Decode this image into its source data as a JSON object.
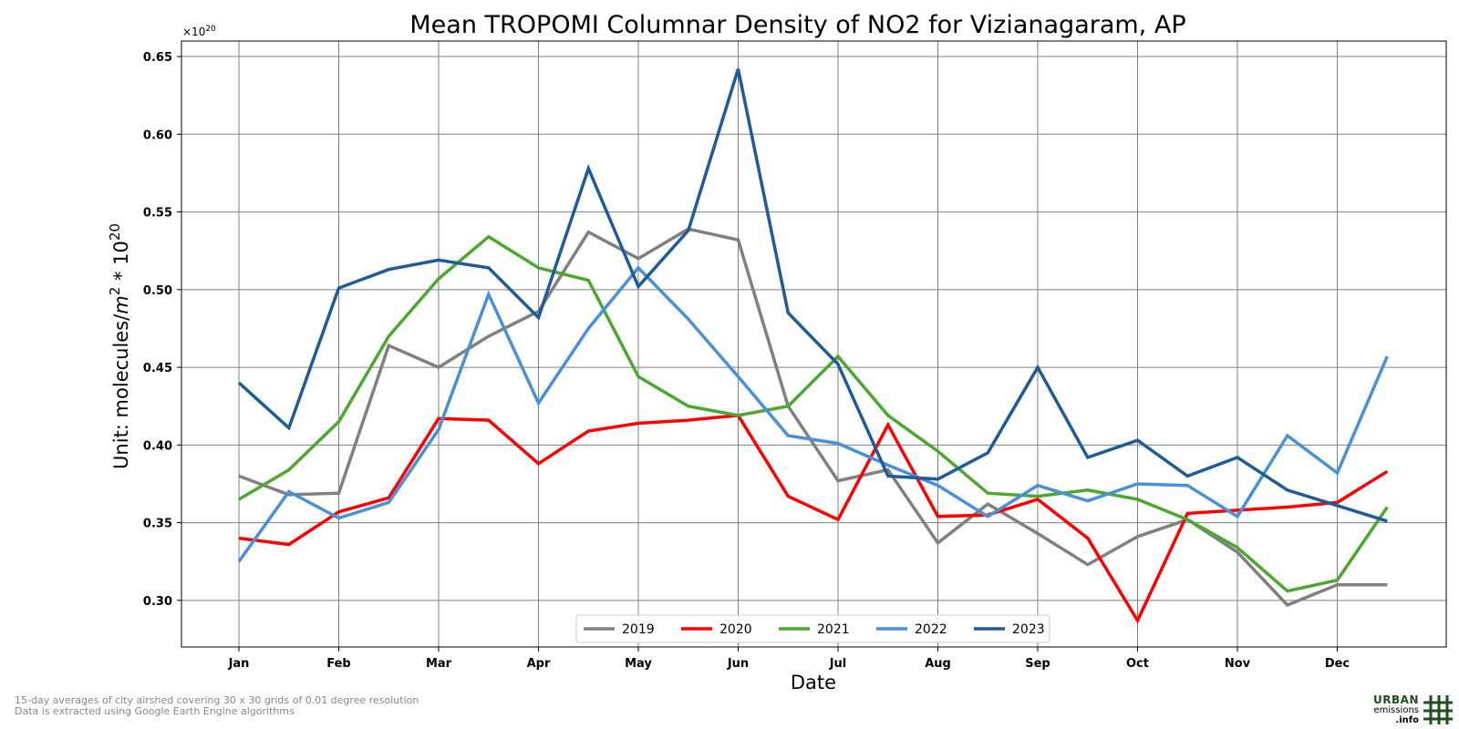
{
  "chart_data": {
    "type": "line",
    "title": "Mean TROPOMI Columnar Density of NO2 for Vizianagaram, AP",
    "xlabel": "Date",
    "ylabel_prefix": "Unit: molecules/",
    "ylabel_m": "m",
    "ylabel_exp": "2",
    "ylabel_mid": " * 10",
    "ylabel_exp2": "20",
    "y_offset_base": "×10",
    "y_offset_exp": "20",
    "ylim": [
      0.27,
      0.66
    ],
    "y_ticks": [
      "0.30",
      "0.35",
      "0.40",
      "0.45",
      "0.50",
      "0.55",
      "0.60",
      "0.65"
    ],
    "x_tick_labels": [
      "Jan",
      "Feb",
      "Mar",
      "Apr",
      "May",
      "Jun",
      "Jul",
      "Aug",
      "Sep",
      "Oct",
      "Nov",
      "Dec"
    ],
    "grid": true,
    "legend_placement": "bottom-center",
    "series": [
      {
        "name": "2019",
        "color": "#808080",
        "values": [
          0.38,
          0.368,
          0.369,
          0.464,
          0.45,
          0.47,
          0.486,
          0.537,
          0.52,
          0.539,
          0.532,
          0.425,
          0.377,
          0.384,
          0.337,
          0.362,
          0.343,
          0.323,
          0.341,
          0.352,
          0.331,
          0.297,
          0.31,
          0.31
        ]
      },
      {
        "name": "2020",
        "color": "#ff0000",
        "values": [
          0.34,
          0.336,
          0.357,
          0.366,
          0.417,
          0.416,
          0.388,
          0.409,
          0.414,
          0.416,
          0.419,
          0.367,
          0.352,
          0.413,
          0.354,
          0.355,
          0.365,
          0.34,
          0.287,
          0.356,
          0.358,
          0.36,
          0.363,
          0.383
        ]
      },
      {
        "name": "2021",
        "color": "#4ca72f",
        "values": [
          0.365,
          0.384,
          0.415,
          0.47,
          0.507,
          0.534,
          0.514,
          0.506,
          0.444,
          0.425,
          0.419,
          0.425,
          0.457,
          0.419,
          0.396,
          0.369,
          0.367,
          0.371,
          0.365,
          0.352,
          0.334,
          0.306,
          0.313,
          0.36
        ]
      },
      {
        "name": "2022",
        "color": "#4a90d9",
        "values": [
          0.325,
          0.37,
          0.353,
          0.363,
          0.41,
          0.497,
          0.427,
          0.475,
          0.514,
          0.481,
          0.444,
          0.406,
          0.401,
          0.387,
          0.374,
          0.354,
          0.374,
          0.364,
          0.375,
          0.374,
          0.354,
          0.406,
          0.382,
          0.457
        ]
      },
      {
        "name": "2023",
        "color": "#1f5b99",
        "values": [
          0.44,
          0.411,
          0.501,
          0.513,
          0.519,
          0.514,
          0.482,
          0.578,
          0.502,
          0.538,
          0.642,
          0.485,
          0.452,
          0.38,
          0.378,
          0.395,
          0.45,
          0.392,
          0.403,
          0.38,
          0.392,
          0.371,
          0.361,
          0.351
        ]
      }
    ]
  },
  "footnotes": [
    "15-day averages of city airshed covering 30 x 30 grids of 0.01 degree resolution",
    "Data is extracted using Google Earth Engine algorithms"
  ],
  "logo": {
    "line1": "URBAN",
    "line2": "emissions",
    "line3": ".info",
    "color": "#1f4e1f"
  }
}
